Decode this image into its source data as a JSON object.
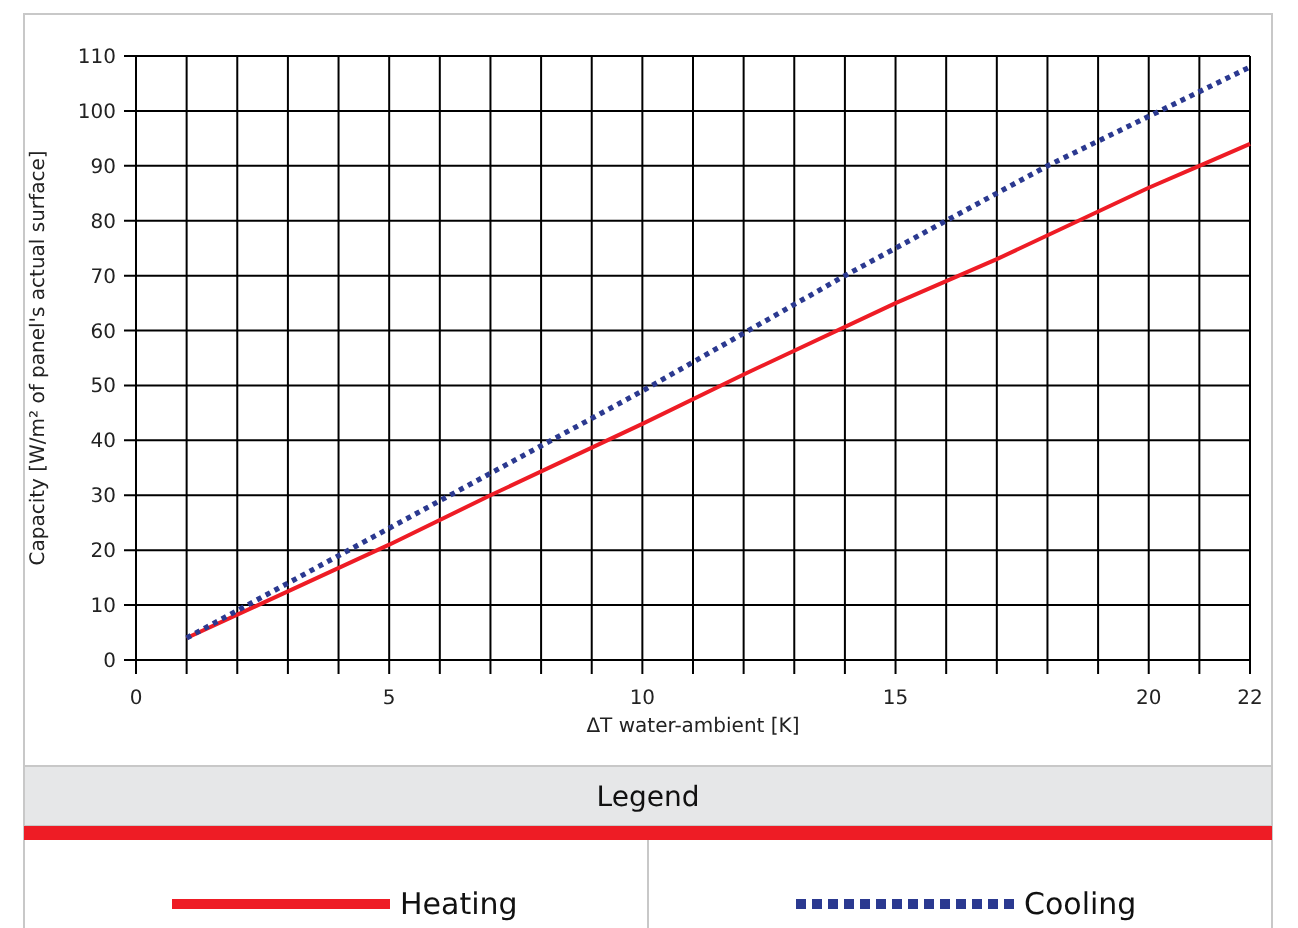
{
  "chart_data": {
    "type": "line",
    "xlabel": "ΔT water-ambient [K]",
    "ylabel": "Capacity [W/m² of panel's actual surface]",
    "legend_title": "Legend",
    "legend": "bottom",
    "grid": true,
    "marker": "none",
    "xlim": [
      0,
      22
    ],
    "ylim": [
      0,
      110
    ],
    "xticks": [
      0,
      {
        "value": 1,
        "label": null
      },
      {
        "value": 2,
        "label": null
      },
      {
        "value": 3,
        "label": null
      },
      {
        "value": 4,
        "label": null
      },
      5,
      {
        "value": 6,
        "label": null
      },
      {
        "value": 7,
        "label": null
      },
      {
        "value": 8,
        "label": null
      },
      {
        "value": 9,
        "label": null
      },
      10,
      {
        "value": 11,
        "label": null
      },
      {
        "value": 12,
        "label": null
      },
      {
        "value": 13,
        "label": null
      },
      {
        "value": 14,
        "label": null
      },
      15,
      {
        "value": 16,
        "label": null
      },
      {
        "value": 17,
        "label": null
      },
      {
        "value": 18,
        "label": null
      },
      {
        "value": 19,
        "label": null
      },
      20,
      {
        "value": 21,
        "label": null
      },
      22
    ],
    "yticks": [
      0,
      10,
      20,
      30,
      40,
      50,
      60,
      70,
      80,
      90,
      100,
      110
    ],
    "series": [
      {
        "name": "Heating",
        "color": "#ee1c25",
        "line_style": "solid",
        "x": [
          1,
          5,
          7,
          10,
          12,
          15,
          17,
          20,
          21,
          22
        ],
        "values": [
          4,
          21,
          30,
          43,
          52,
          65,
          73,
          86,
          90,
          94
        ]
      },
      {
        "name": "Cooling",
        "color": "#2b3990",
        "line_style": "dotted",
        "x": [
          1,
          4,
          6,
          8,
          10,
          14,
          16,
          18,
          20,
          22
        ],
        "values": [
          4,
          19,
          29,
          39,
          49,
          70,
          80,
          90,
          99,
          108
        ]
      }
    ]
  }
}
